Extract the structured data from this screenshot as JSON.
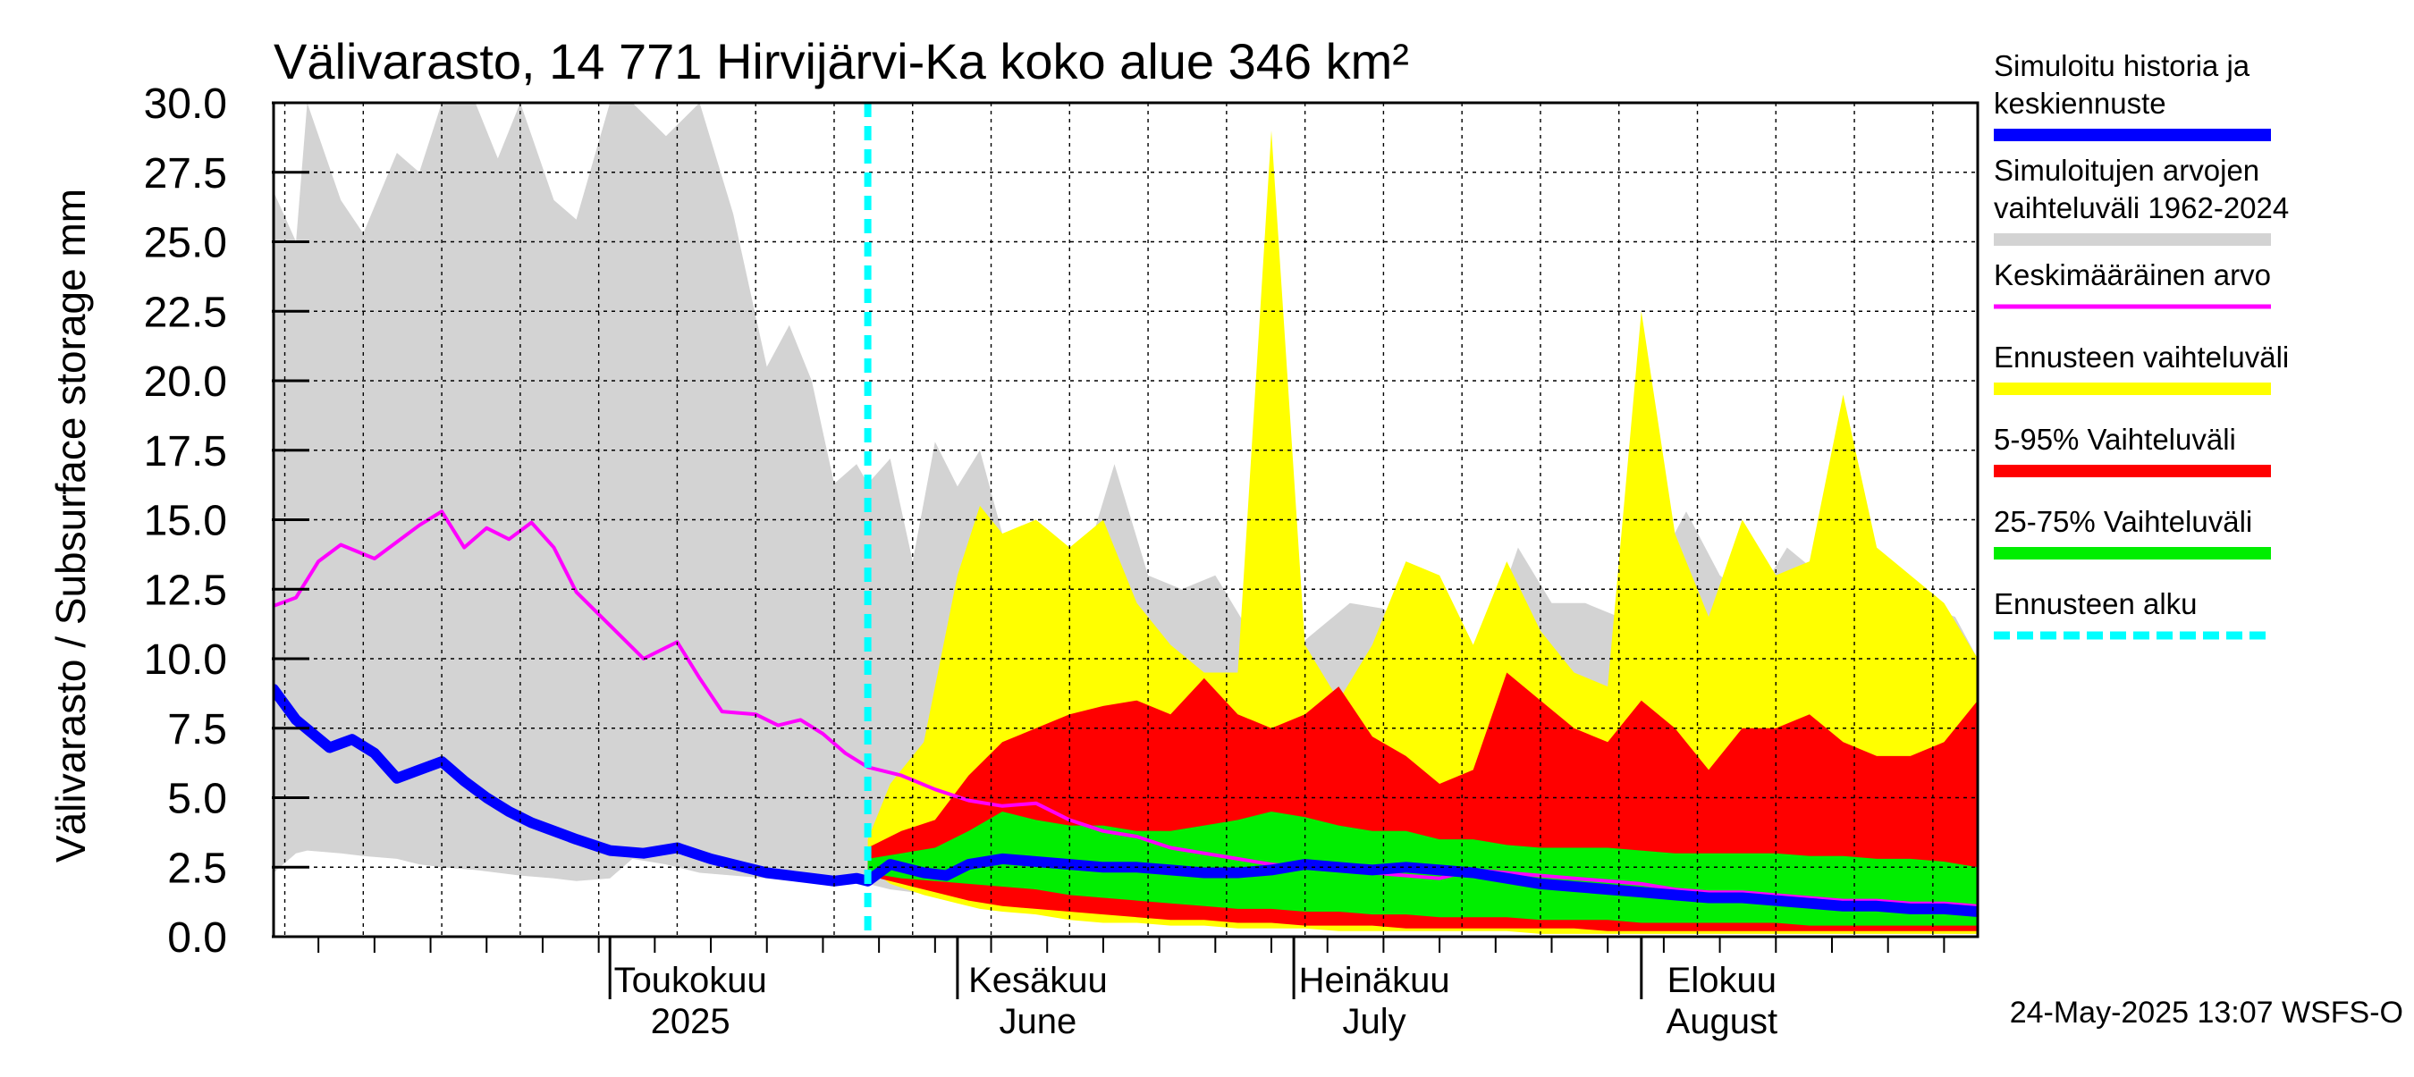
{
  "chart_data": {
    "type": "area",
    "title": "Välivarasto, 14 771 Hirvijärvi-Ka koko alue 346 km²",
    "ylabel": "Välivarasto / Subsurface storage  mm",
    "ylim": [
      0,
      30
    ],
    "yticks": [
      "0.0",
      "2.5",
      "5.0",
      "7.5",
      "10.0",
      "12.5",
      "15.0",
      "17.5",
      "20.0",
      "22.5",
      "25.0",
      "27.5",
      "30.0"
    ],
    "xlim": [
      "2025-04-01",
      "2025-08-31"
    ],
    "grid": true,
    "month_labels": [
      {
        "date": "2025-05-01",
        "line1": "Toukokuu",
        "line2": "2025"
      },
      {
        "date": "2025-06-01",
        "line1": "Kesäkuu",
        "line2": "June"
      },
      {
        "date": "2025-07-01",
        "line1": "Heinäkuu",
        "line2": "July"
      },
      {
        "date": "2025-08-01",
        "line1": "Elokuu",
        "line2": "August"
      }
    ],
    "forecast_start": "2025-05-24",
    "footer": "24-May-2025 13:07 WSFS-O",
    "colors": {
      "history_range": "#d3d3d3",
      "forecast_range": "#ffff00",
      "p5_95": "#ff0000",
      "p25_75": "#00ee00",
      "median": "#0000ff",
      "mean": "#ff00ff",
      "forecast_start": "#00ffff"
    },
    "legend": [
      {
        "lines": [
          "Simuloitu historia ja",
          "keskiennuste"
        ],
        "color": "#0000ff",
        "style": "solid"
      },
      {
        "lines": [
          "Simuloitujen arvojen",
          "vaihteluväli 1962-2024"
        ],
        "color": "#d3d3d3",
        "style": "solid"
      },
      {
        "lines": [
          "Keskimääräinen arvo"
        ],
        "color": "#ff00ff",
        "style": "thin"
      },
      {
        "lines": [
          "Ennusteen vaihteluväli"
        ],
        "color": "#ffff00",
        "style": "solid"
      },
      {
        "lines": [
          "5-95% Vaihteluväli"
        ],
        "color": "#ff0000",
        "style": "solid"
      },
      {
        "lines": [
          "25-75% Vaihteluväli"
        ],
        "color": "#00ee00",
        "style": "solid"
      },
      {
        "lines": [
          "Ennusteen alku"
        ],
        "color": "#00ffff",
        "style": "dashed"
      }
    ],
    "series": [
      {
        "name": "Simuloitujen arvojen vaihteluväli 1962-2024",
        "x": [
          "2025-04-01",
          "2025-04-03",
          "2025-04-04",
          "2025-04-07",
          "2025-04-09",
          "2025-04-12",
          "2025-04-14",
          "2025-04-16",
          "2025-04-19",
          "2025-04-21",
          "2025-04-23",
          "2025-04-26",
          "2025-04-28",
          "2025-05-01",
          "2025-05-03",
          "2025-05-06",
          "2025-05-09",
          "2025-05-12",
          "2025-05-15",
          "2025-05-17",
          "2025-05-19",
          "2025-05-21",
          "2025-05-23",
          "2025-05-24",
          "2025-05-26",
          "2025-05-28",
          "2025-05-30",
          "2025-06-01",
          "2025-06-03",
          "2025-06-06",
          "2025-06-09",
          "2025-06-12",
          "2025-06-15",
          "2025-06-18",
          "2025-06-21",
          "2025-06-24",
          "2025-06-27",
          "2025-06-30",
          "2025-07-03",
          "2025-07-06",
          "2025-07-09",
          "2025-07-12",
          "2025-07-15",
          "2025-07-18",
          "2025-07-21",
          "2025-07-24",
          "2025-07-27",
          "2025-07-30",
          "2025-08-02",
          "2025-08-05",
          "2025-08-08",
          "2025-08-11",
          "2025-08-14",
          "2025-08-17",
          "2025-08-20",
          "2025-08-23",
          "2025-08-26",
          "2025-08-29",
          "2025-08-31"
        ],
        "low": [
          2.3,
          3.0,
          3.1,
          3.0,
          2.9,
          2.8,
          2.6,
          2.5,
          2.4,
          2.3,
          2.2,
          2.1,
          2.0,
          2.1,
          2.8,
          2.6,
          2.3,
          2.2,
          2.1,
          2.0,
          2.1,
          2.1,
          2.0,
          1.9,
          1.7,
          1.6,
          1.5,
          1.4,
          1.3,
          1.2,
          1.1,
          1.0,
          0.9,
          0.8,
          0.8,
          0.7,
          0.6,
          0.6,
          0.5,
          0.5,
          0.5,
          0.4,
          0.4,
          0.4,
          0.3,
          0.3,
          0.3,
          0.3,
          0.3,
          0.2,
          0.2,
          0.2,
          0.2,
          0.2,
          0.2,
          0.2,
          0.2,
          0.1,
          0.1
        ],
        "high": [
          26.8,
          25.0,
          30.0,
          26.5,
          25.3,
          28.2,
          27.5,
          30.0,
          30.0,
          28.0,
          30.0,
          26.5,
          25.8,
          30.0,
          30.0,
          28.8,
          30.0,
          26.0,
          20.5,
          22.0,
          20.0,
          16.3,
          17.0,
          16.3,
          17.2,
          13.5,
          17.8,
          16.2,
          17.5,
          13.0,
          11.5,
          13.0,
          17.0,
          13.0,
          12.5,
          13.0,
          11.0,
          10.0,
          11.0,
          12.0,
          11.8,
          10.5,
          10.0,
          10.5,
          14.0,
          12.0,
          12.0,
          11.5,
          13.0,
          15.3,
          13.0,
          12.0,
          14.0,
          13.0,
          12.5,
          11.0,
          12.0,
          11.5,
          10.0
        ]
      },
      {
        "name": "Ennusteen vaihteluväli",
        "x": [
          "2025-05-24",
          "2025-05-26",
          "2025-05-29",
          "2025-06-01",
          "2025-06-03",
          "2025-06-05",
          "2025-06-08",
          "2025-06-11",
          "2025-06-14",
          "2025-06-17",
          "2025-06-20",
          "2025-06-23",
          "2025-06-26",
          "2025-06-29",
          "2025-07-02",
          "2025-07-05",
          "2025-07-08",
          "2025-07-11",
          "2025-07-14",
          "2025-07-17",
          "2025-07-20",
          "2025-07-23",
          "2025-07-26",
          "2025-07-29",
          "2025-08-01",
          "2025-08-04",
          "2025-08-07",
          "2025-08-10",
          "2025-08-13",
          "2025-08-16",
          "2025-08-19",
          "2025-08-22",
          "2025-08-25",
          "2025-08-28",
          "2025-08-31"
        ],
        "low": [
          2.5,
          1.9,
          1.5,
          1.2,
          1.0,
          0.9,
          0.8,
          0.6,
          0.5,
          0.5,
          0.4,
          0.4,
          0.3,
          0.3,
          0.3,
          0.2,
          0.2,
          0.2,
          0.2,
          0.2,
          0.2,
          0.1,
          0.1,
          0.1,
          0.1,
          0.1,
          0.1,
          0.1,
          0.1,
          0.1,
          0.1,
          0.1,
          0.1,
          0.1,
          0.1
        ],
        "high": [
          3.5,
          5.5,
          7.0,
          13.0,
          15.5,
          14.5,
          15.0,
          14.0,
          15.0,
          12.0,
          10.5,
          9.5,
          9.5,
          29.0,
          10.5,
          8.5,
          10.5,
          13.5,
          13.0,
          10.5,
          13.5,
          11.0,
          9.5,
          9.0,
          22.5,
          14.5,
          11.5,
          15.0,
          13.0,
          13.5,
          19.5,
          14.0,
          13.0,
          12.0,
          10.0
        ]
      },
      {
        "name": "5-95% Vaihteluväli",
        "x": [
          "2025-05-24",
          "2025-05-27",
          "2025-05-30",
          "2025-06-02",
          "2025-06-05",
          "2025-06-08",
          "2025-06-11",
          "2025-06-14",
          "2025-06-17",
          "2025-06-20",
          "2025-06-23",
          "2025-06-26",
          "2025-06-29",
          "2025-07-02",
          "2025-07-05",
          "2025-07-08",
          "2025-07-11",
          "2025-07-14",
          "2025-07-17",
          "2025-07-20",
          "2025-07-23",
          "2025-07-26",
          "2025-07-29",
          "2025-08-01",
          "2025-08-04",
          "2025-08-07",
          "2025-08-10",
          "2025-08-13",
          "2025-08-16",
          "2025-08-19",
          "2025-08-22",
          "2025-08-25",
          "2025-08-28",
          "2025-08-31"
        ],
        "low": [
          2.2,
          1.9,
          1.6,
          1.3,
          1.1,
          1.0,
          0.9,
          0.8,
          0.7,
          0.6,
          0.6,
          0.5,
          0.5,
          0.4,
          0.4,
          0.4,
          0.3,
          0.3,
          0.3,
          0.3,
          0.3,
          0.3,
          0.2,
          0.2,
          0.2,
          0.2,
          0.2,
          0.2,
          0.2,
          0.2,
          0.2,
          0.2,
          0.2,
          0.2
        ],
        "high": [
          3.2,
          3.8,
          4.2,
          5.8,
          7.0,
          7.5,
          8.0,
          8.3,
          8.5,
          8.0,
          9.3,
          8.0,
          7.5,
          8.0,
          9.0,
          7.2,
          6.5,
          5.5,
          6.0,
          9.5,
          8.5,
          7.5,
          7.0,
          8.5,
          7.5,
          6.0,
          7.5,
          7.5,
          8.0,
          7.0,
          6.5,
          6.5,
          7.0,
          8.5
        ]
      },
      {
        "name": "25-75% Vaihteluväli",
        "x": [
          "2025-05-24",
          "2025-05-27",
          "2025-05-30",
          "2025-06-02",
          "2025-06-05",
          "2025-06-08",
          "2025-06-11",
          "2025-06-14",
          "2025-06-17",
          "2025-06-20",
          "2025-06-23",
          "2025-06-26",
          "2025-06-29",
          "2025-07-02",
          "2025-07-05",
          "2025-07-08",
          "2025-07-11",
          "2025-07-14",
          "2025-07-17",
          "2025-07-20",
          "2025-07-23",
          "2025-07-26",
          "2025-07-29",
          "2025-08-01",
          "2025-08-04",
          "2025-08-07",
          "2025-08-10",
          "2025-08-13",
          "2025-08-16",
          "2025-08-19",
          "2025-08-22",
          "2025-08-25",
          "2025-08-28",
          "2025-08-31"
        ],
        "low": [
          2.3,
          2.1,
          2.0,
          1.9,
          1.8,
          1.7,
          1.5,
          1.4,
          1.3,
          1.2,
          1.1,
          1.0,
          1.0,
          0.9,
          0.9,
          0.8,
          0.8,
          0.7,
          0.7,
          0.7,
          0.6,
          0.6,
          0.6,
          0.5,
          0.5,
          0.5,
          0.5,
          0.5,
          0.4,
          0.4,
          0.4,
          0.4,
          0.4,
          0.4
        ],
        "high": [
          2.8,
          3.0,
          3.2,
          3.8,
          4.5,
          4.2,
          4.0,
          4.0,
          3.8,
          3.8,
          4.0,
          4.2,
          4.5,
          4.3,
          4.0,
          3.8,
          3.8,
          3.5,
          3.5,
          3.3,
          3.2,
          3.2,
          3.2,
          3.1,
          3.0,
          3.0,
          3.0,
          3.0,
          2.9,
          2.9,
          2.8,
          2.8,
          2.7,
          2.5
        ]
      },
      {
        "name": "Simuloitu historia ja keskiennuste",
        "x": [
          "2025-04-01",
          "2025-04-03",
          "2025-04-06",
          "2025-04-08",
          "2025-04-10",
          "2025-04-12",
          "2025-04-14",
          "2025-04-16",
          "2025-04-18",
          "2025-04-20",
          "2025-04-22",
          "2025-04-24",
          "2025-04-26",
          "2025-04-28",
          "2025-05-01",
          "2025-05-04",
          "2025-05-07",
          "2025-05-10",
          "2025-05-13",
          "2025-05-15",
          "2025-05-17",
          "2025-05-19",
          "2025-05-21",
          "2025-05-23",
          "2025-05-24",
          "2025-05-26",
          "2025-05-29",
          "2025-05-31",
          "2025-06-02",
          "2025-06-05",
          "2025-06-08",
          "2025-06-11",
          "2025-06-14",
          "2025-06-17",
          "2025-06-20",
          "2025-06-23",
          "2025-06-26",
          "2025-06-29",
          "2025-07-02",
          "2025-07-05",
          "2025-07-08",
          "2025-07-11",
          "2025-07-14",
          "2025-07-17",
          "2025-07-20",
          "2025-07-23",
          "2025-07-26",
          "2025-07-29",
          "2025-08-01",
          "2025-08-04",
          "2025-08-07",
          "2025-08-10",
          "2025-08-13",
          "2025-08-16",
          "2025-08-19",
          "2025-08-22",
          "2025-08-25",
          "2025-08-28",
          "2025-08-31"
        ],
        "y": [
          8.9,
          7.8,
          6.8,
          7.1,
          6.6,
          5.7,
          6.0,
          6.3,
          5.6,
          5.0,
          4.5,
          4.1,
          3.8,
          3.5,
          3.1,
          3.0,
          3.2,
          2.8,
          2.5,
          2.3,
          2.2,
          2.1,
          2.0,
          2.1,
          2.0,
          2.6,
          2.3,
          2.2,
          2.6,
          2.8,
          2.7,
          2.6,
          2.5,
          2.5,
          2.4,
          2.3,
          2.3,
          2.4,
          2.6,
          2.5,
          2.4,
          2.5,
          2.4,
          2.3,
          2.1,
          1.9,
          1.8,
          1.7,
          1.6,
          1.5,
          1.4,
          1.4,
          1.3,
          1.2,
          1.1,
          1.1,
          1.0,
          1.0,
          0.9
        ]
      },
      {
        "name": "Keskimääräinen arvo",
        "x": [
          "2025-04-01",
          "2025-04-03",
          "2025-04-05",
          "2025-04-07",
          "2025-04-10",
          "2025-04-12",
          "2025-04-14",
          "2025-04-16",
          "2025-04-18",
          "2025-04-20",
          "2025-04-22",
          "2025-04-24",
          "2025-04-26",
          "2025-04-28",
          "2025-05-01",
          "2025-05-04",
          "2025-05-07",
          "2025-05-09",
          "2025-05-11",
          "2025-05-14",
          "2025-05-16",
          "2025-05-18",
          "2025-05-20",
          "2025-05-22",
          "2025-05-24",
          "2025-05-27",
          "2025-05-30",
          "2025-06-02",
          "2025-06-05",
          "2025-06-08",
          "2025-06-11",
          "2025-06-14",
          "2025-06-17",
          "2025-06-20",
          "2025-06-23",
          "2025-06-26",
          "2025-06-29",
          "2025-07-02",
          "2025-07-05",
          "2025-07-08",
          "2025-07-11",
          "2025-07-14",
          "2025-07-17",
          "2025-07-20",
          "2025-07-23",
          "2025-07-26",
          "2025-07-29",
          "2025-08-01",
          "2025-08-04",
          "2025-08-07",
          "2025-08-10",
          "2025-08-13",
          "2025-08-16",
          "2025-08-19",
          "2025-08-22",
          "2025-08-25",
          "2025-08-28",
          "2025-08-31"
        ],
        "y": [
          11.9,
          12.2,
          13.5,
          14.1,
          13.6,
          14.2,
          14.8,
          15.3,
          14.0,
          14.7,
          14.3,
          14.9,
          14.0,
          12.4,
          11.2,
          10.0,
          10.6,
          9.3,
          8.1,
          8.0,
          7.6,
          7.8,
          7.3,
          6.6,
          6.1,
          5.8,
          5.3,
          4.9,
          4.7,
          4.8,
          4.2,
          3.8,
          3.6,
          3.2,
          3.0,
          2.8,
          2.6,
          2.5,
          2.4,
          2.3,
          2.2,
          2.1,
          2.4,
          2.3,
          2.2,
          2.1,
          2.0,
          1.9,
          1.7,
          1.6,
          1.6,
          1.5,
          1.4,
          1.3,
          1.3,
          1.2,
          1.2,
          1.1
        ]
      }
    ]
  }
}
